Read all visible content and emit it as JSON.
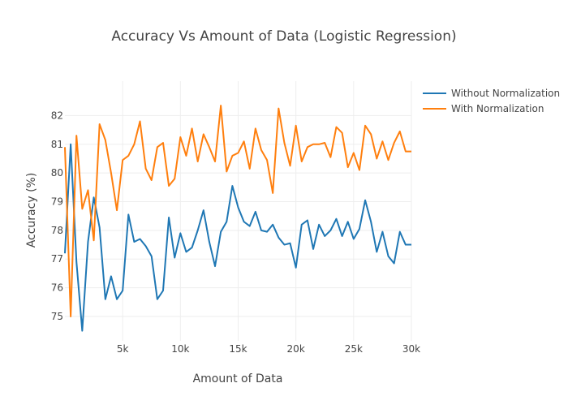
{
  "chart_data": {
    "type": "line",
    "title": "Accuracy Vs Amount of Data (Logistic Regression)",
    "xlabel": "Amount of Data",
    "ylabel": "Accuracy (%)",
    "xlim": [
      0,
      30000
    ],
    "ylim": [
      74.15,
      83.2
    ],
    "xticks": [
      5000,
      10000,
      15000,
      20000,
      25000,
      30000
    ],
    "xtick_labels": [
      "5k",
      "10k",
      "15k",
      "20k",
      "25k",
      "30k"
    ],
    "yticks": [
      75,
      76,
      77,
      78,
      79,
      80,
      81,
      82
    ],
    "ytick_labels": [
      "75",
      "76",
      "77",
      "78",
      "79",
      "80",
      "81",
      "82"
    ],
    "grid": true,
    "legend_position": "top-right",
    "series": [
      {
        "name": "Without Normalization",
        "color": "#1f77b4",
        "x": [
          0,
          500,
          1000,
          1500,
          2000,
          2500,
          3000,
          3500,
          4000,
          4500,
          5000,
          5500,
          6000,
          6500,
          7000,
          7500,
          8000,
          8500,
          9000,
          9500,
          10000,
          10500,
          11000,
          11500,
          12000,
          12500,
          13000,
          13500,
          14000,
          14500,
          15000,
          15500,
          16000,
          16500,
          17000,
          17500,
          18000,
          18500,
          19000,
          19500,
          20000,
          20500,
          21000,
          21500,
          22000,
          22500,
          23000,
          23500,
          24000,
          24500,
          25000,
          25500,
          26000,
          26500,
          27000,
          27500,
          28000,
          28500,
          29000,
          29500,
          30000
        ],
        "y": [
          77.2,
          81.0,
          76.9,
          74.5,
          77.6,
          79.15,
          78.1,
          75.6,
          76.4,
          75.6,
          75.9,
          78.55,
          77.6,
          77.7,
          77.45,
          77.1,
          75.6,
          75.9,
          78.45,
          77.05,
          77.9,
          77.25,
          77.4,
          78.0,
          78.7,
          77.6,
          76.75,
          77.95,
          78.3,
          79.55,
          78.8,
          78.3,
          78.15,
          78.65,
          78.0,
          77.95,
          78.2,
          77.75,
          77.5,
          77.55,
          76.7,
          78.2,
          78.35,
          77.35,
          78.2,
          77.8,
          78.0,
          78.4,
          77.8,
          78.3,
          77.7,
          78.05,
          79.05,
          78.3,
          77.25,
          77.95,
          77.1,
          76.85,
          77.95,
          77.5,
          77.5
        ]
      },
      {
        "name": "With Normalization",
        "color": "#ff7f0e",
        "x": [
          0,
          500,
          1000,
          1500,
          2000,
          2500,
          3000,
          3500,
          4000,
          4500,
          5000,
          5500,
          6000,
          6500,
          7000,
          7500,
          8000,
          8500,
          9000,
          9500,
          10000,
          10500,
          11000,
          11500,
          12000,
          12500,
          13000,
          13500,
          14000,
          14500,
          15000,
          15500,
          16000,
          16500,
          17000,
          17500,
          18000,
          18500,
          19000,
          19500,
          20000,
          20500,
          21000,
          21500,
          22000,
          22500,
          23000,
          23500,
          24000,
          24500,
          25000,
          25500,
          26000,
          26500,
          27000,
          27500,
          28000,
          28500,
          29000,
          29500,
          30000
        ],
        "y": [
          80.9,
          75.0,
          81.3,
          78.75,
          79.4,
          77.65,
          81.7,
          81.15,
          80.0,
          78.7,
          80.45,
          80.6,
          81.0,
          81.8,
          80.15,
          79.75,
          80.9,
          81.05,
          79.55,
          79.8,
          81.25,
          80.6,
          81.55,
          80.4,
          81.35,
          80.9,
          80.4,
          82.35,
          80.05,
          80.6,
          80.7,
          81.1,
          80.15,
          81.55,
          80.8,
          80.45,
          79.3,
          82.25,
          81.05,
          80.25,
          81.65,
          80.4,
          80.9,
          81.0,
          81.0,
          81.05,
          80.55,
          81.6,
          81.4,
          80.2,
          80.7,
          80.1,
          81.65,
          81.35,
          80.5,
          81.1,
          80.45,
          81.05,
          81.45,
          80.75,
          80.75
        ]
      }
    ]
  }
}
